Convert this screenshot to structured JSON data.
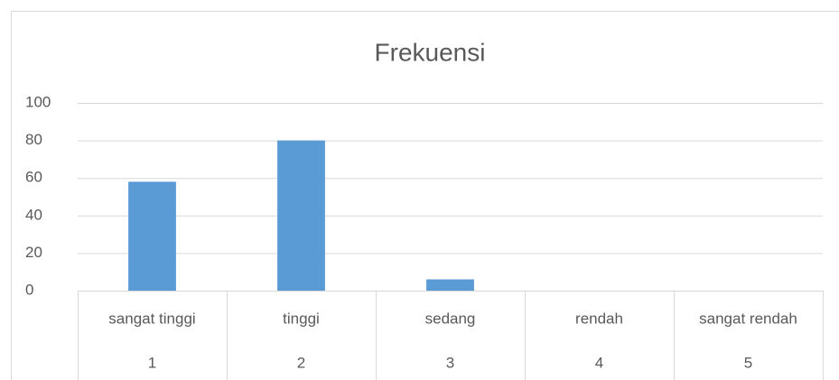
{
  "chart_data": {
    "type": "bar",
    "title": "Frekuensi",
    "categories": [
      "sangat tinggi",
      "tinggi",
      "sedang",
      "rendah",
      "sangat rendah"
    ],
    "category_codes": [
      "1",
      "2",
      "3",
      "4",
      "5"
    ],
    "values": [
      58,
      80,
      6,
      0,
      0
    ],
    "color": "#5b9bd5",
    "ylim": [
      0,
      100
    ],
    "yticks": [
      0,
      20,
      40,
      60,
      80,
      100
    ],
    "grid": true
  }
}
